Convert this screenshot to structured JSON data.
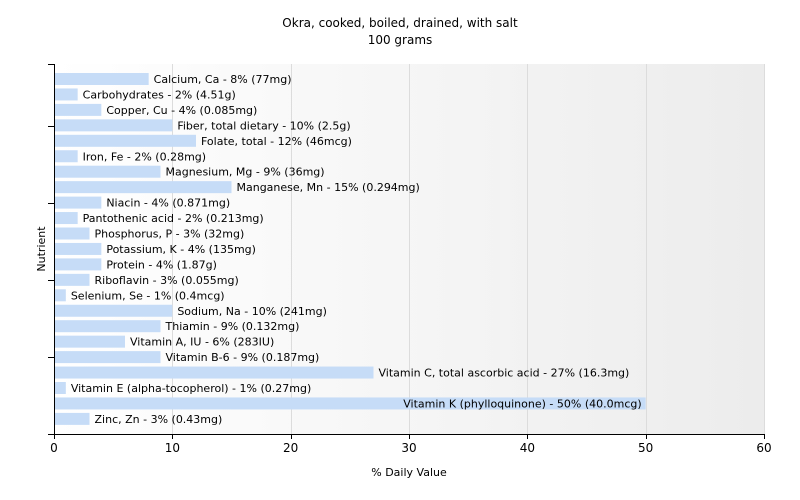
{
  "chart_data": {
    "type": "bar",
    "orientation": "horizontal",
    "title": "Okra, cooked, boiled, drained, with salt",
    "subtitle": "100 grams",
    "xlabel": "% Daily Value",
    "ylabel": "Nutrient",
    "xlim": [
      0,
      60
    ],
    "xticks": [
      0,
      10,
      20,
      30,
      40,
      50,
      60
    ],
    "grid": true,
    "bar_color": "#c6dcf7",
    "categories": [
      "Calcium, Ca",
      "Carbohydrates",
      "Copper, Cu",
      "Fiber, total dietary",
      "Folate, total",
      "Iron, Fe",
      "Magnesium, Mg",
      "Manganese, Mn",
      "Niacin",
      "Pantothenic acid",
      "Phosphorus, P",
      "Potassium, K",
      "Protein",
      "Riboflavin",
      "Selenium, Se",
      "Sodium, Na",
      "Thiamin",
      "Vitamin A, IU",
      "Vitamin B-6",
      "Vitamin C, total ascorbic acid",
      "Vitamin E (alpha-tocopherol)",
      "Vitamin K (phylloquinone)",
      "Zinc, Zn"
    ],
    "values": [
      8,
      2,
      4,
      10,
      12,
      2,
      9,
      15,
      4,
      2,
      3,
      4,
      4,
      3,
      1,
      10,
      9,
      6,
      9,
      27,
      1,
      50,
      3
    ],
    "labels": [
      "Calcium, Ca - 8% (77mg)",
      "Carbohydrates - 2% (4.51g)",
      "Copper, Cu - 4% (0.085mg)",
      "Fiber, total dietary - 10% (2.5g)",
      "Folate, total - 12% (46mcg)",
      "Iron, Fe - 2% (0.28mg)",
      "Magnesium, Mg - 9% (36mg)",
      "Manganese, Mn - 15% (0.294mg)",
      "Niacin - 4% (0.871mg)",
      "Pantothenic acid - 2% (0.213mg)",
      "Phosphorus, P - 3% (32mg)",
      "Potassium, K - 4% (135mg)",
      "Protein - 4% (1.87g)",
      "Riboflavin - 3% (0.055mg)",
      "Selenium, Se - 1% (0.4mcg)",
      "Sodium, Na - 10% (241mg)",
      "Thiamin - 9% (0.132mg)",
      "Vitamin A, IU - 6% (283IU)",
      "Vitamin B-6 - 9% (0.187mg)",
      "Vitamin C, total ascorbic acid - 27% (16.3mg)",
      "Vitamin E (alpha-tocopherol) - 1% (0.27mg)",
      "Vitamin K (phylloquinone) - 50% (40.0mcg)",
      "Zinc, Zn - 3% (0.43mg)"
    ]
  }
}
